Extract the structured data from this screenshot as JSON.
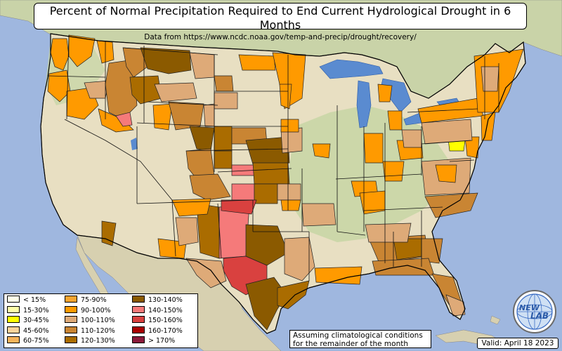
{
  "title": "Percent of Normal Precipitation Required to End Current Hydrological Drought in 6 Months",
  "subtitle": "Data from https://www.ncdc.noaa.gov/temp-and-precip/drought/recovery/",
  "note_line1": "Assuming climatological conditions",
  "note_line2": "for the remainder of the month",
  "valid": "Valid: April 18 2023",
  "logo": {
    "text_top": "NEW",
    "text_bottom": "LAB",
    "icon": "globe-logo-icon"
  },
  "legend": [
    {
      "label": "< 15%",
      "color": "#ffffe8"
    },
    {
      "label": "15-30%",
      "color": "#ffffa8"
    },
    {
      "label": "30-45%",
      "color": "#ffff00"
    },
    {
      "label": "45-60%",
      "color": "#fbd39a"
    },
    {
      "label": "60-75%",
      "color": "#f5b35a"
    },
    {
      "label": "75-90%",
      "color": "#f7a530"
    },
    {
      "label": "90-100%",
      "color": "#ff9a00"
    },
    {
      "label": "100-110%",
      "color": "#deaa78"
    },
    {
      "label": "110-120%",
      "color": "#c98533"
    },
    {
      "label": "120-130%",
      "color": "#aa6c00"
    },
    {
      "label": "130-140%",
      "color": "#8b5a00"
    },
    {
      "label": "140-150%",
      "color": "#f57a7a"
    },
    {
      "label": "150-160%",
      "color": "#d9413f"
    },
    {
      "label": "160-170%",
      "color": "#a80000"
    },
    {
      "label": "> 170%",
      "color": "#8b1a3a"
    }
  ],
  "colors": {
    "ocean": "#9fb7df",
    "land": "#e8dfc2",
    "lakes": "#5a8bd0",
    "green_land": "#c7d6a5"
  }
}
